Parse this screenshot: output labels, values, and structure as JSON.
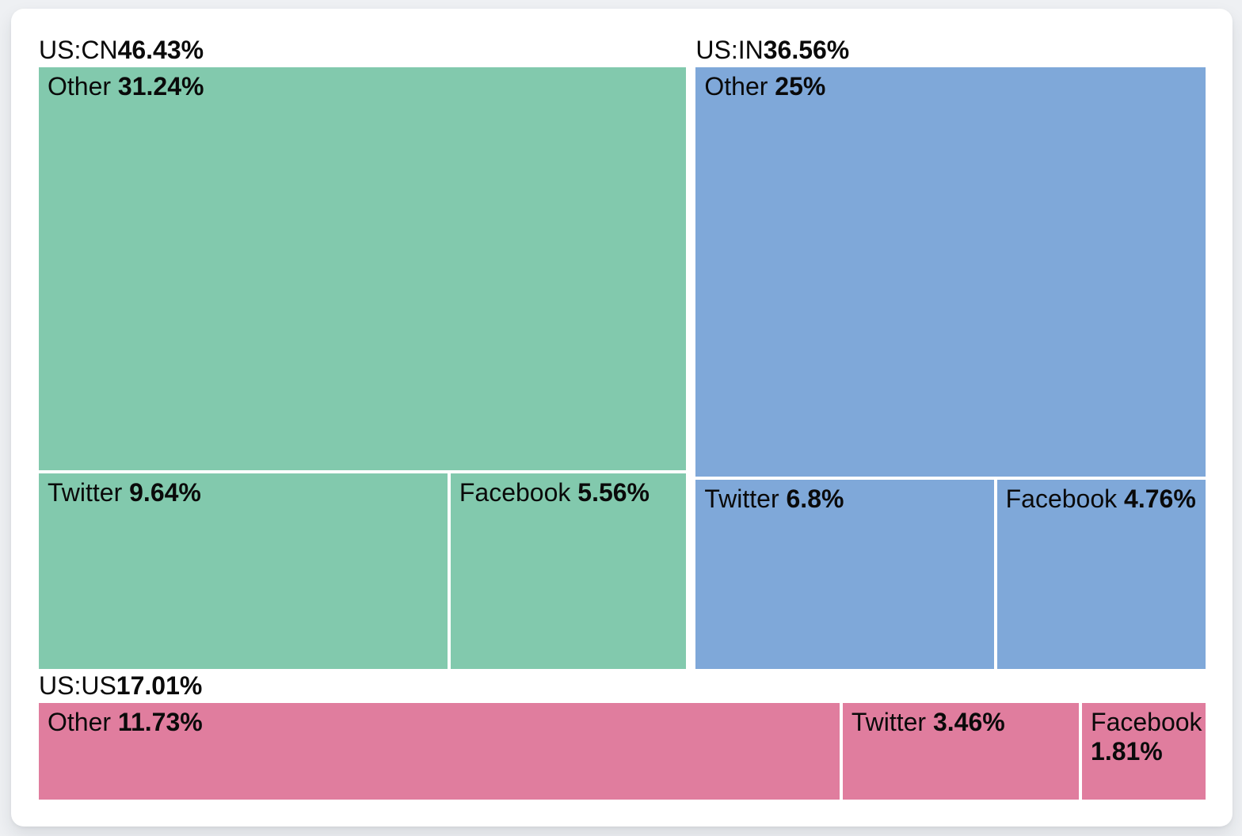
{
  "chart_data": {
    "type": "treemap",
    "title": "",
    "legend_position": "none",
    "groups": [
      {
        "id": "us-cn",
        "label": "US:CN",
        "pct": "46.43%",
        "value": 46.43,
        "color": "#82c9ad",
        "children": [
          {
            "id": "other",
            "name": "Other",
            "pct": "31.24%",
            "value": 31.24
          },
          {
            "id": "twitter",
            "name": "Twitter",
            "pct": "9.64%",
            "value": 9.64
          },
          {
            "id": "facebook",
            "name": "Facebook",
            "pct": "5.56%",
            "value": 5.56
          }
        ]
      },
      {
        "id": "us-in",
        "label": "US:IN",
        "pct": "36.56%",
        "value": 36.56,
        "color": "#7fa8d9",
        "children": [
          {
            "id": "other",
            "name": "Other",
            "pct": "25%",
            "value": 25
          },
          {
            "id": "twitter",
            "name": "Twitter",
            "pct": "6.8%",
            "value": 6.8
          },
          {
            "id": "facebook",
            "name": "Facebook",
            "pct": "4.76%",
            "value": 4.76
          }
        ]
      },
      {
        "id": "us-us",
        "label": "US:US",
        "pct": "17.01%",
        "value": 17.01,
        "color": "#e07d9e",
        "children": [
          {
            "id": "other",
            "name": "Other",
            "pct": "11.73%",
            "value": 11.73
          },
          {
            "id": "twitter",
            "name": "Twitter",
            "pct": "3.46%",
            "value": 3.46
          },
          {
            "id": "facebook",
            "name": "Facebook",
            "pct": "1.81%",
            "value": 1.81
          }
        ]
      }
    ]
  },
  "colors": {
    "page_background": "#eef0f3",
    "card_background": "#ffffff",
    "label_text": "#0a0a0a",
    "gutter": "#ffffff"
  }
}
